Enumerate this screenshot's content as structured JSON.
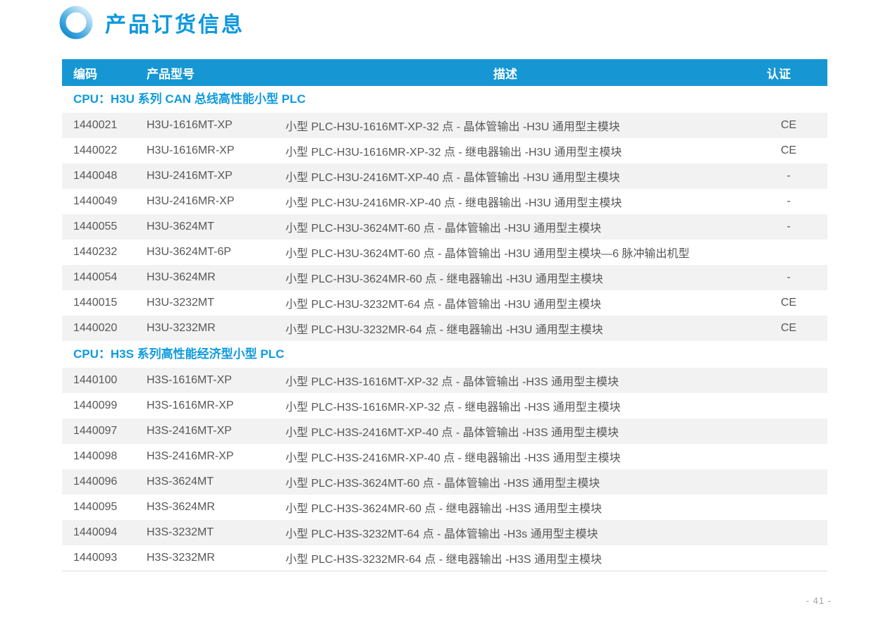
{
  "page": {
    "title": "产品订货信息",
    "page_number": "- 41 -"
  },
  "colors": {
    "header_bar_blue": "#1697d3",
    "title_blue": "#0c97de",
    "section_blue": "#0f9ade",
    "row_alt_bg": "#f2f2f2",
    "body_text": "#595757",
    "footer_text": "#9fa0a0",
    "ring_gradient_dark": "#1b8fd3",
    "ring_gradient_light": "#cde8f8"
  },
  "icons": {
    "title_ring": "ring-icon"
  },
  "table": {
    "columns": [
      "编码",
      "产品型号",
      "描述",
      "认证"
    ],
    "sections": [
      {
        "title": "CPU：H3U 系列 CAN 总线高性能小型 PLC",
        "rows": [
          {
            "code": "1440021",
            "model": "H3U-1616MT-XP",
            "desc": "小型 PLC-H3U-1616MT-XP-32 点 - 晶体管输出 -H3U 通用型主模块",
            "cert": "CE"
          },
          {
            "code": "1440022",
            "model": "H3U-1616MR-XP",
            "desc": "小型 PLC-H3U-1616MR-XP-32 点 - 继电器输出 -H3U 通用型主模块",
            "cert": "CE"
          },
          {
            "code": "1440048",
            "model": "H3U-2416MT-XP",
            "desc": "小型 PLC-H3U-2416MT-XP-40 点 - 晶体管输出 -H3U 通用型主模块",
            "cert": "-"
          },
          {
            "code": "1440049",
            "model": "H3U-2416MR-XP",
            "desc": "小型 PLC-H3U-2416MR-XP-40 点 - 继电器输出 -H3U 通用型主模块",
            "cert": "-"
          },
          {
            "code": "1440055",
            "model": "H3U-3624MT",
            "desc": "小型 PLC-H3U-3624MT-60 点 - 晶体管输出 -H3U 通用型主模块",
            "cert": "-"
          },
          {
            "code": "1440232",
            "model": "H3U-3624MT-6P",
            "desc": "小型 PLC-H3U-3624MT-60 点 - 晶体管输出 -H3U 通用型主模块—6 脉冲输出机型",
            "cert": ""
          },
          {
            "code": "1440054",
            "model": "H3U-3624MR",
            "desc": "小型 PLC-H3U-3624MR-60 点 - 继电器输出 -H3U 通用型主模块",
            "cert": "-"
          },
          {
            "code": "1440015",
            "model": "H3U-3232MT",
            "desc": "小型 PLC-H3U-3232MT-64 点 - 晶体管输出 -H3U 通用型主模块",
            "cert": "CE"
          },
          {
            "code": "1440020",
            "model": "H3U-3232MR",
            "desc": "小型 PLC-H3U-3232MR-64 点 - 继电器输出 -H3U 通用型主模块",
            "cert": "CE"
          }
        ]
      },
      {
        "title": "CPU：H3S 系列高性能经济型小型 PLC",
        "rows": [
          {
            "code": "1440100",
            "model": "H3S-1616MT-XP",
            "desc": "小型 PLC-H3S-1616MT-XP-32 点 - 晶体管输出 -H3S 通用型主模块",
            "cert": ""
          },
          {
            "code": "1440099",
            "model": "H3S-1616MR-XP",
            "desc": "小型 PLC-H3S-1616MR-XP-32 点 - 继电器输出 -H3S 通用型主模块",
            "cert": ""
          },
          {
            "code": "1440097",
            "model": "H3S-2416MT-XP",
            "desc": "小型 PLC-H3S-2416MT-XP-40 点 - 晶体管输出 -H3S 通用型主模块",
            "cert": ""
          },
          {
            "code": "1440098",
            "model": "H3S-2416MR-XP",
            "desc": "小型 PLC-H3S-2416MR-XP-40 点 - 继电器输出 -H3S 通用型主模块",
            "cert": ""
          },
          {
            "code": "1440096",
            "model": "H3S-3624MT",
            "desc": "小型 PLC-H3S-3624MT-60 点 - 晶体管输出 -H3S 通用型主模块",
            "cert": ""
          },
          {
            "code": "1440095",
            "model": "H3S-3624MR",
            "desc": "小型 PLC-H3S-3624MR-60 点 - 继电器输出 -H3S 通用型主模块",
            "cert": ""
          },
          {
            "code": "1440094",
            "model": "H3S-3232MT",
            "desc": "小型 PLC-H3S-3232MT-64 点 - 晶体管输出 -H3s 通用型主模块",
            "cert": ""
          },
          {
            "code": "1440093",
            "model": "H3S-3232MR",
            "desc": "小型 PLC-H3S-3232MR-64 点 - 继电器输出 -H3S 通用型主模块",
            "cert": ""
          }
        ]
      }
    ]
  }
}
